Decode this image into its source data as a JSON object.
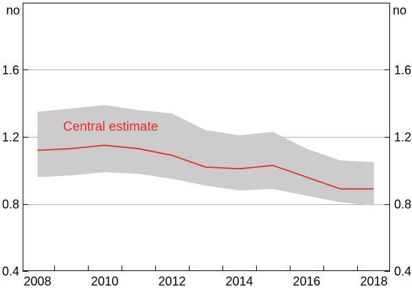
{
  "chart": {
    "unit_left": "no",
    "unit_right": "no",
    "annotation": {
      "text": "Central estimate"
    }
  },
  "colors": {
    "line": "#EE2A24",
    "annotation_text": "#EE2A24",
    "band": "#CCCCCC",
    "grid": "#AFAFAF",
    "axis": "#000000",
    "background": "#FFFFFF"
  },
  "chart_data": {
    "type": "line",
    "title": "",
    "xlabel": "",
    "ylabel": "no",
    "grid": true,
    "legend": "none",
    "x": [
      2008,
      2009,
      2010,
      2011,
      2012,
      2013,
      2014,
      2015,
      2016,
      2017,
      2018
    ],
    "series": [
      {
        "name": "Central estimate",
        "values": [
          1.12,
          1.13,
          1.15,
          1.13,
          1.09,
          1.02,
          1.01,
          1.03,
          0.96,
          0.89,
          0.89
        ]
      }
    ],
    "band": {
      "upper": [
        1.35,
        1.37,
        1.39,
        1.36,
        1.34,
        1.24,
        1.21,
        1.23,
        1.13,
        1.06,
        1.05
      ],
      "lower": [
        0.96,
        0.97,
        0.99,
        0.98,
        0.95,
        0.91,
        0.88,
        0.89,
        0.85,
        0.81,
        0.79
      ]
    },
    "ylim": [
      0.4,
      2.0
    ],
    "xlim": [
      2007.56,
      2018.48
    ],
    "yticks": [
      0.4,
      0.8,
      1.2,
      1.6
    ],
    "yticklabels": [
      "0.4",
      "0.8",
      "1.2",
      "1.6"
    ],
    "xticks_minor": [
      2008.5,
      2009.5,
      2010.5,
      2011.5,
      2012.5,
      2013.5,
      2014.5,
      2015.5,
      2016.5,
      2017.5
    ],
    "xtick_label_years": [
      2008,
      2010,
      2012,
      2014,
      2016,
      2018
    ],
    "xticklabels": [
      "2008",
      "2010",
      "2012",
      "2014",
      "2016",
      "2018"
    ]
  }
}
